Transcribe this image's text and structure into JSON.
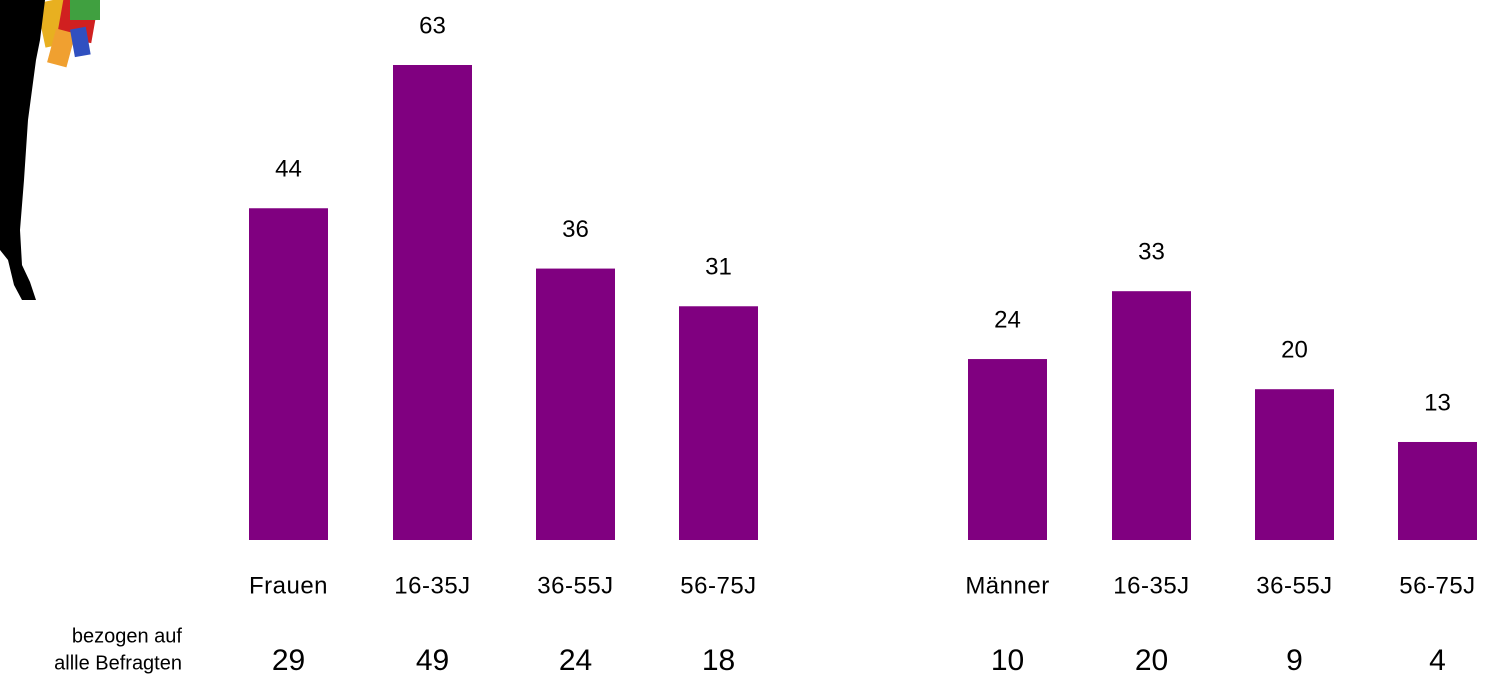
{
  "chart_data": {
    "type": "bar",
    "categories": [
      "Frauen",
      "16-35J",
      "36-55J",
      "56-75J",
      "Männer",
      "16-35J",
      "36-55J",
      "56-75J"
    ],
    "values": [
      44,
      63,
      36,
      31,
      24,
      33,
      20,
      13
    ],
    "color": "#800080",
    "footer": {
      "label": [
        "bezogen auf",
        "allle Befragten"
      ],
      "values": [
        29,
        49,
        24,
        18,
        10,
        20,
        9,
        4
      ]
    }
  }
}
